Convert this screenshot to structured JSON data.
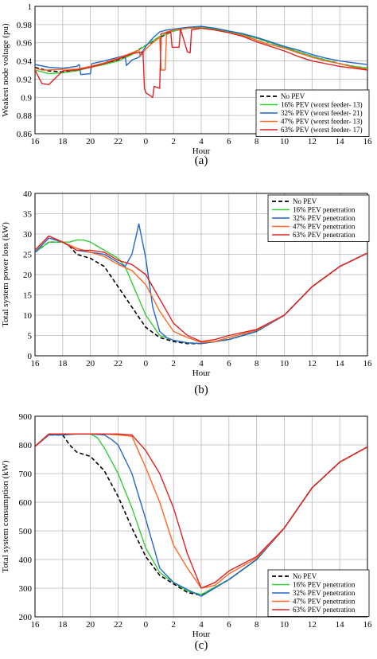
{
  "chart_data": [
    {
      "type": "line",
      "caption": "(a)",
      "xlabel": "Hour",
      "ylabel": "Weakest node voltage (pu)",
      "xlim": [
        16,
        40
      ],
      "ylim": [
        0.86,
        1.0
      ],
      "yticks": [
        0.86,
        0.88,
        0.9,
        0.92,
        0.94,
        0.96,
        0.98,
        1.0
      ],
      "yticklabels": [
        "0.86",
        "0.88",
        "0.9",
        "0.92",
        "0.94",
        "0.96",
        "0.98",
        "1"
      ],
      "xticks": [
        16,
        18,
        20,
        22,
        24,
        26,
        28,
        30,
        32,
        34,
        36,
        38,
        40
      ],
      "xticklabels": [
        "16",
        "18",
        "20",
        "22",
        "0",
        "2",
        "4",
        "6",
        "8",
        "10",
        "12",
        "14",
        "16"
      ],
      "grid": true,
      "legend": "bottom-right",
      "series": [
        {
          "name": "No PEV",
          "color": "#000000",
          "dash": true,
          "x": [
            16,
            17,
            18,
            19,
            20,
            21,
            22,
            23,
            24,
            25,
            26,
            27,
            28,
            29,
            30,
            31,
            32,
            33,
            34,
            35,
            36,
            37,
            38,
            39,
            40
          ],
          "y": [
            0.933,
            0.929,
            0.928,
            0.93,
            0.934,
            0.937,
            0.941,
            0.948,
            0.957,
            0.966,
            0.973,
            0.976,
            0.977,
            0.975,
            0.972,
            0.969,
            0.965,
            0.96,
            0.955,
            0.95,
            0.945,
            0.941,
            0.937,
            0.934,
            0.932
          ]
        },
        {
          "name": "16% PEV (worst feeder- 13)",
          "color": "#33cc33",
          "dash": false,
          "x": [
            16,
            17,
            18,
            19,
            20,
            21,
            22,
            23,
            24,
            25,
            26,
            27,
            28,
            29,
            30,
            31,
            32,
            33,
            34,
            35,
            36,
            37,
            38,
            39,
            40
          ],
          "y": [
            0.93,
            0.926,
            0.927,
            0.929,
            0.933,
            0.936,
            0.94,
            0.947,
            0.957,
            0.967,
            0.973,
            0.976,
            0.977,
            0.975,
            0.972,
            0.969,
            0.965,
            0.96,
            0.955,
            0.95,
            0.945,
            0.941,
            0.937,
            0.934,
            0.932
          ]
        },
        {
          "name": "32% PEV (worst feeder- 21)",
          "color": "#2266cc",
          "dash": false,
          "x": [
            16,
            17,
            18,
            19,
            19.2,
            19.3,
            20,
            20.1,
            21,
            22,
            22.5,
            22.6,
            23,
            23.5,
            24,
            24.5,
            25,
            25.5,
            26,
            27,
            28,
            29,
            30,
            31,
            32,
            33,
            34,
            35,
            36,
            37,
            38,
            39,
            40
          ],
          "y": [
            0.936,
            0.933,
            0.932,
            0.934,
            0.936,
            0.925,
            0.926,
            0.937,
            0.94,
            0.944,
            0.946,
            0.935,
            0.941,
            0.944,
            0.956,
            0.965,
            0.972,
            0.974,
            0.975,
            0.977,
            0.978,
            0.976,
            0.973,
            0.97,
            0.966,
            0.961,
            0.956,
            0.952,
            0.947,
            0.943,
            0.94,
            0.938,
            0.936
          ]
        },
        {
          "name": "47% PEV (worst feeder- 13)",
          "color": "#ff6622",
          "dash": false,
          "x": [
            16,
            16.5,
            17,
            18,
            19,
            20,
            21,
            22,
            23,
            23.5,
            23.6,
            24,
            24.5,
            25,
            25.1,
            25.4,
            25.5,
            26,
            27,
            28,
            29,
            30,
            31,
            32,
            32.5,
            33,
            34,
            35,
            36,
            37,
            38,
            39,
            40
          ],
          "y": [
            0.932,
            0.93,
            0.93,
            0.931,
            0.931,
            0.934,
            0.938,
            0.943,
            0.949,
            0.952,
            0.945,
            0.953,
            0.96,
            0.966,
            0.93,
            0.93,
            0.972,
            0.974,
            0.976,
            0.976,
            0.974,
            0.971,
            0.968,
            0.963,
            0.96,
            0.958,
            0.954,
            0.949,
            0.944,
            0.94,
            0.937,
            0.933,
            0.931
          ]
        },
        {
          "name": "63% PEV (worst feeder- 17)",
          "color": "#dd2222",
          "dash": false,
          "x": [
            16,
            16.5,
            17,
            18,
            19,
            20,
            21,
            22,
            23,
            23.8,
            23.9,
            24,
            24.5,
            24.6,
            25,
            25.1,
            25.8,
            25.9,
            26,
            26.4,
            26.5,
            27,
            27.2,
            27.3,
            28,
            29,
            30,
            31,
            32,
            33,
            34,
            35,
            36,
            37,
            38,
            39,
            40
          ],
          "y": [
            0.93,
            0.915,
            0.914,
            0.929,
            0.93,
            0.933,
            0.937,
            0.942,
            0.948,
            0.95,
            0.91,
            0.905,
            0.9,
            0.912,
            0.91,
            0.97,
            0.972,
            0.955,
            0.955,
            0.955,
            0.975,
            0.95,
            0.949,
            0.974,
            0.976,
            0.974,
            0.971,
            0.967,
            0.961,
            0.956,
            0.951,
            0.945,
            0.94,
            0.937,
            0.934,
            0.932,
            0.93
          ]
        }
      ]
    },
    {
      "type": "line",
      "caption": "(b)",
      "xlabel": "Hour",
      "ylabel": "Total system power loss (kW)",
      "xlim": [
        16,
        40
      ],
      "ylim": [
        0,
        40
      ],
      "yticks": [
        0,
        5,
        10,
        15,
        20,
        25,
        30,
        35,
        40
      ],
      "yticklabels": [
        "0",
        "5",
        "10",
        "15",
        "20",
        "25",
        "30",
        "35",
        "40"
      ],
      "xticks": [
        16,
        18,
        20,
        22,
        24,
        26,
        28,
        30,
        32,
        34,
        36,
        38,
        40
      ],
      "xticklabels": [
        "16",
        "18",
        "20",
        "22",
        "0",
        "2",
        "4",
        "6",
        "8",
        "10",
        "12",
        "14",
        "16"
      ],
      "grid": true,
      "legend": "top-right",
      "series": [
        {
          "name": "No PEV",
          "color": "#000000",
          "dash": true,
          "x": [
            16,
            17,
            18,
            18.5,
            19,
            20,
            21,
            22,
            23,
            24,
            25,
            26,
            27,
            28,
            30,
            32,
            34,
            36,
            38,
            40
          ],
          "y": [
            25.5,
            28,
            28,
            27,
            25,
            24,
            22,
            17,
            12,
            7,
            4.5,
            3.5,
            3,
            3,
            4,
            6,
            10,
            17,
            22,
            25.3
          ]
        },
        {
          "name": "16% PEV penetration",
          "color": "#33cc33",
          "dash": false,
          "x": [
            16,
            17,
            18,
            18.5,
            19,
            19.5,
            20,
            21,
            22,
            22.5,
            23,
            24,
            25,
            26,
            27,
            28,
            30,
            32,
            34,
            36,
            38,
            40
          ],
          "y": [
            25.5,
            28,
            28,
            28,
            28.5,
            28.5,
            28,
            26,
            24,
            22,
            18,
            10,
            5,
            3.8,
            3.2,
            3,
            4,
            6,
            10,
            17,
            22,
            25.3
          ]
        },
        {
          "name": "32% PEV penetration",
          "color": "#2266cc",
          "dash": false,
          "x": [
            16,
            17,
            18,
            18.5,
            19,
            20,
            21,
            22,
            22.5,
            23,
            23.5,
            24,
            24.5,
            25,
            25.5,
            26,
            27,
            28,
            30,
            32,
            34,
            36,
            38,
            40
          ],
          "y": [
            25.5,
            29,
            28,
            27,
            26,
            25.5,
            25,
            23,
            22,
            25,
            32.5,
            24,
            12,
            6,
            4.5,
            3.8,
            3.2,
            3,
            4,
            6,
            10,
            17,
            22,
            25.3
          ]
        },
        {
          "name": "47% PEV penetration",
          "color": "#ff6622",
          "dash": false,
          "x": [
            16,
            17,
            18,
            19,
            20,
            21,
            22,
            23,
            24,
            25,
            26,
            27,
            28,
            29,
            30,
            32,
            34,
            36,
            38,
            40
          ],
          "y": [
            26,
            29.5,
            28,
            26.5,
            25.5,
            24.5,
            22.5,
            21,
            17.5,
            11,
            6,
            4.5,
            3.3,
            3.5,
            4.5,
            6.3,
            10,
            17,
            22,
            25.3
          ]
        },
        {
          "name": "63% PEV penetration",
          "color": "#dd2222",
          "dash": false,
          "x": [
            16,
            17,
            18,
            19,
            20,
            21,
            22,
            23,
            24,
            25,
            26,
            27,
            28,
            29,
            30,
            32,
            34,
            36,
            38,
            40
          ],
          "y": [
            26,
            29.5,
            28,
            26,
            26,
            25.5,
            23.5,
            22.5,
            20,
            14,
            8,
            5,
            3.5,
            4,
            5,
            6.5,
            10,
            17,
            22,
            25.3
          ]
        }
      ]
    },
    {
      "type": "line",
      "caption": "(c)",
      "xlabel": "Hour",
      "ylabel": "Total system consumption (kW)",
      "xlim": [
        16,
        40
      ],
      "ylim": [
        200,
        900
      ],
      "yticks": [
        200,
        300,
        400,
        500,
        600,
        700,
        800,
        900
      ],
      "yticklabels": [
        "200",
        "300",
        "400",
        "500",
        "600",
        "700",
        "800",
        "900"
      ],
      "xticks": [
        16,
        18,
        20,
        22,
        24,
        26,
        28,
        30,
        32,
        34,
        36,
        38,
        40
      ],
      "xticklabels": [
        "16",
        "18",
        "20",
        "22",
        "0",
        "2",
        "4",
        "6",
        "8",
        "10",
        "12",
        "14",
        "16"
      ],
      "grid": true,
      "legend": "bottom-right",
      "series": [
        {
          "name": "No PEV",
          "color": "#000000",
          "dash": true,
          "x": [
            16,
            17,
            18,
            18.5,
            19,
            20,
            21,
            22,
            23,
            24,
            25,
            26,
            27,
            28,
            30,
            32,
            34,
            36,
            38,
            40
          ],
          "y": [
            795,
            835,
            835,
            800,
            775,
            760,
            710,
            620,
            510,
            410,
            345,
            315,
            285,
            275,
            330,
            400,
            510,
            650,
            740,
            793
          ]
        },
        {
          "name": "16% PEV penetration",
          "color": "#33cc33",
          "dash": false,
          "x": [
            16,
            17,
            18,
            19,
            20,
            20.5,
            21,
            22,
            23,
            24,
            25,
            26,
            27,
            28,
            30,
            32,
            34,
            36,
            38,
            40
          ],
          "y": [
            795,
            835,
            835,
            838,
            838,
            825,
            790,
            700,
            580,
            440,
            355,
            320,
            290,
            278,
            330,
            400,
            510,
            650,
            740,
            793
          ]
        },
        {
          "name": "32% PEV penetration",
          "color": "#2266cc",
          "dash": false,
          "x": [
            16,
            17,
            18,
            19,
            20,
            21,
            21.5,
            22,
            23,
            24,
            25,
            26,
            27,
            28,
            30,
            32,
            34,
            36,
            38,
            40
          ],
          "y": [
            795,
            835,
            835,
            838,
            838,
            835,
            820,
            800,
            700,
            540,
            370,
            320,
            295,
            272,
            330,
            400,
            510,
            650,
            740,
            793
          ]
        },
        {
          "name": "47% PEV penetration",
          "color": "#ff6622",
          "dash": false,
          "x": [
            16,
            17,
            18,
            19,
            20,
            21,
            22,
            23,
            24,
            25,
            26,
            27,
            28,
            29,
            30,
            32,
            34,
            36,
            38,
            40
          ],
          "y": [
            795,
            838,
            838,
            838,
            838,
            838,
            835,
            830,
            720,
            600,
            450,
            370,
            300,
            310,
            350,
            405,
            510,
            650,
            740,
            793
          ]
        },
        {
          "name": "63% PEV penetration",
          "color": "#dd2222",
          "dash": false,
          "x": [
            16,
            17,
            18,
            19,
            20,
            21,
            22,
            23,
            24,
            25,
            26,
            27,
            28,
            29,
            30,
            32,
            34,
            36,
            38,
            40
          ],
          "y": [
            795,
            838,
            838,
            838,
            838,
            838,
            838,
            835,
            780,
            700,
            580,
            420,
            300,
            320,
            360,
            410,
            510,
            650,
            740,
            793
          ]
        }
      ]
    }
  ]
}
